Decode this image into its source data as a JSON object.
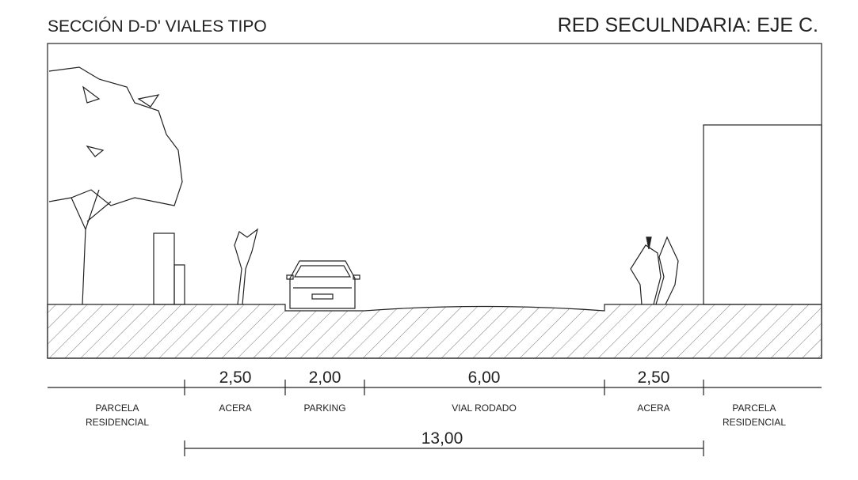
{
  "header": {
    "title": "SECCIÓN D-D'  VIALES TIPO",
    "subtitle": "RED SECULNDARIA:  EJE C."
  },
  "parcels": [
    {
      "label": [
        "PARCELA",
        "RESIDENCIAL"
      ]
    },
    {
      "label": [
        "PARCELA",
        "RESIDENCIAL"
      ]
    }
  ],
  "segments": [
    {
      "dimension": "2,50",
      "label": "ACERA"
    },
    {
      "dimension": "2,00",
      "label": "PARKING"
    },
    {
      "dimension": "6,00",
      "label": "VIAL RODADO"
    },
    {
      "dimension": "2,50",
      "label": "ACERA"
    }
  ],
  "total": "13,00"
}
